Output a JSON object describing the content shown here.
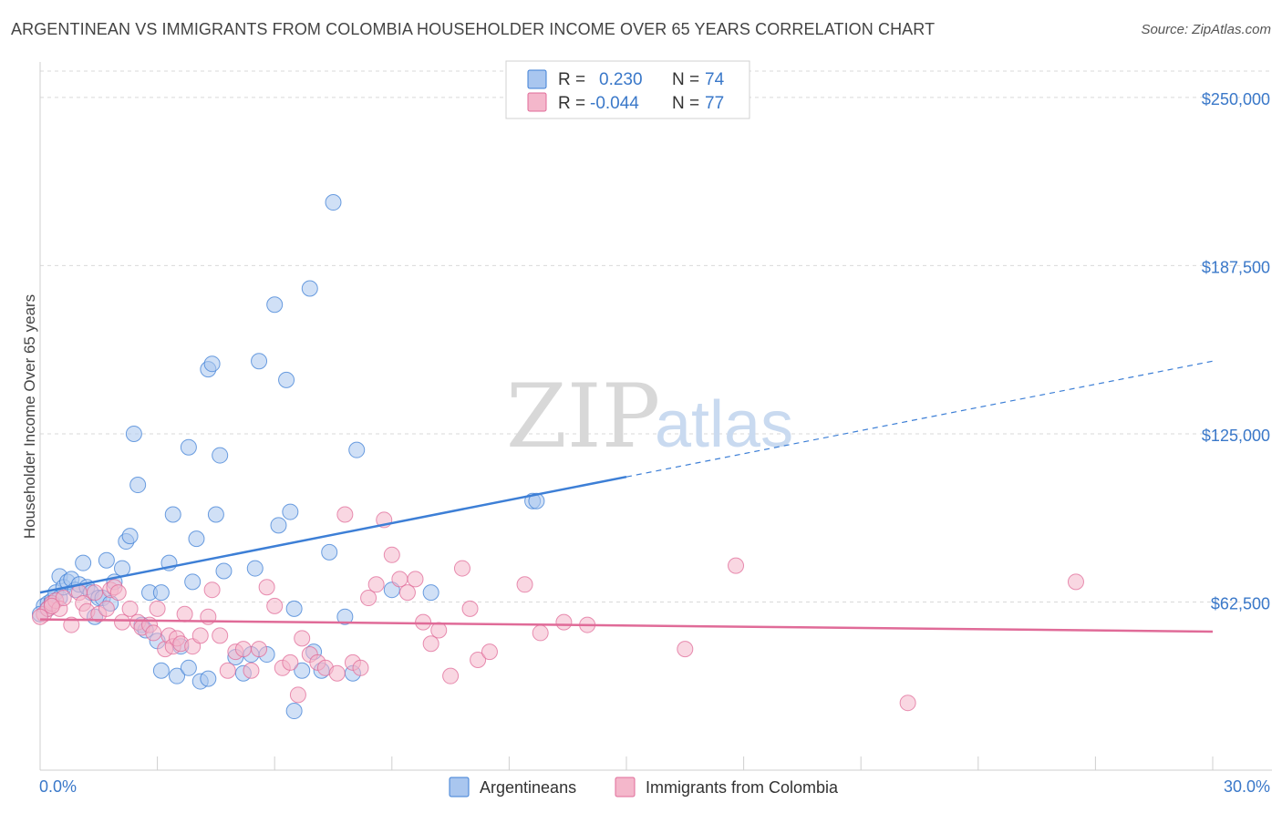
{
  "title": "ARGENTINEAN VS IMMIGRANTS FROM COLOMBIA HOUSEHOLDER INCOME OVER 65 YEARS CORRELATION CHART",
  "source": "Source: ZipAtlas.com",
  "watermark": {
    "zip": "ZIP",
    "atlas": "atlas"
  },
  "legend_box": {
    "rows": [
      {
        "r_label": "R =",
        "r_value": "0.230",
        "n_label": "N =",
        "n_value": "74"
      },
      {
        "r_label": "R =",
        "r_value": "-0.044",
        "n_label": "N =",
        "n_value": "77"
      }
    ]
  },
  "colors": {
    "blue": "#3d7fd6",
    "blue_fill": "#a9c6ef",
    "pink": "#e06b98",
    "pink_fill": "#f4b7cb",
    "axis_text": "#3a78c9",
    "grid": "#d9d9d9"
  },
  "chart_data": {
    "type": "scatter",
    "title": "ARGENTINEAN VS IMMIGRANTS FROM COLOMBIA HOUSEHOLDER INCOME OVER 65 YEARS CORRELATION CHART",
    "xlabel": "",
    "ylabel": "Householder Income Over 65 years",
    "xlim": [
      0,
      30
    ],
    "ylim": [
      0,
      262500
    ],
    "x_tick_labels": {
      "left": "0.0%",
      "right": "30.0%"
    },
    "y_ticks": [
      {
        "value": 62500,
        "label": "$62,500"
      },
      {
        "value": 125000,
        "label": "$125,000"
      },
      {
        "value": 187500,
        "label": "$187,500"
      },
      {
        "value": 250000,
        "label": "$250,000"
      }
    ],
    "grid": true,
    "legend_position": "bottom",
    "series": [
      {
        "name": "Argentineans",
        "color": "#3d7fd6",
        "fill": "#a9c6ef",
        "trend": {
          "x0": 0.0,
          "y0": 66000,
          "x1": 15.0,
          "y1": 109000,
          "x_dash_end": 30.0,
          "y_dash_end": 152000
        },
        "points": [
          [
            0.1,
            61000
          ],
          [
            0.2,
            62000
          ],
          [
            0.3,
            63000
          ],
          [
            0.4,
            66000
          ],
          [
            0.5,
            64000
          ],
          [
            0.5,
            72000
          ],
          [
            0.6,
            68000
          ],
          [
            0.7,
            70000
          ],
          [
            0.8,
            71000
          ],
          [
            0.9,
            67000
          ],
          [
            1.0,
            69000
          ],
          [
            1.1,
            77000
          ],
          [
            1.2,
            68000
          ],
          [
            1.3,
            66000
          ],
          [
            1.4,
            57000
          ],
          [
            1.5,
            64000
          ],
          [
            1.6,
            64000
          ],
          [
            1.7,
            78000
          ],
          [
            1.8,
            62000
          ],
          [
            1.9,
            70000
          ],
          [
            2.1,
            75000
          ],
          [
            2.2,
            85000
          ],
          [
            2.3,
            87000
          ],
          [
            2.4,
            125000
          ],
          [
            2.5,
            106000
          ],
          [
            2.6,
            54000
          ],
          [
            2.7,
            52000
          ],
          [
            2.8,
            66000
          ],
          [
            3.0,
            48000
          ],
          [
            3.1,
            66000
          ],
          [
            3.1,
            37000
          ],
          [
            3.3,
            77000
          ],
          [
            3.4,
            95000
          ],
          [
            3.5,
            35000
          ],
          [
            3.6,
            46000
          ],
          [
            3.8,
            38000
          ],
          [
            3.8,
            120000
          ],
          [
            3.9,
            70000
          ],
          [
            4.0,
            86000
          ],
          [
            4.1,
            33000
          ],
          [
            4.3,
            34000
          ],
          [
            4.3,
            149000
          ],
          [
            4.4,
            151000
          ],
          [
            4.5,
            95000
          ],
          [
            4.6,
            117000
          ],
          [
            4.7,
            74000
          ],
          [
            5.0,
            42000
          ],
          [
            5.2,
            36000
          ],
          [
            5.4,
            43000
          ],
          [
            5.5,
            75000
          ],
          [
            5.6,
            152000
          ],
          [
            5.8,
            43000
          ],
          [
            6.0,
            173000
          ],
          [
            6.1,
            91000
          ],
          [
            6.3,
            145000
          ],
          [
            6.4,
            96000
          ],
          [
            6.5,
            60000
          ],
          [
            6.5,
            22000
          ],
          [
            6.7,
            37000
          ],
          [
            6.9,
            179000
          ],
          [
            7.0,
            44000
          ],
          [
            7.2,
            37000
          ],
          [
            7.4,
            81000
          ],
          [
            7.5,
            211000
          ],
          [
            7.8,
            57000
          ],
          [
            8.0,
            36000
          ],
          [
            8.1,
            119000
          ],
          [
            9.0,
            67000
          ],
          [
            10.0,
            66000
          ],
          [
            12.6,
            100000
          ],
          [
            12.7,
            100000
          ],
          [
            0.0,
            58000
          ],
          [
            0.2,
            60000
          ],
          [
            0.3,
            62000
          ]
        ]
      },
      {
        "name": "Immigrants from Colombia",
        "color": "#e06b98",
        "fill": "#f4b7cb",
        "trend": {
          "x0": 0.0,
          "y0": 56000,
          "x1": 30.0,
          "y1": 51500
        },
        "points": [
          [
            0.1,
            58000
          ],
          [
            0.2,
            60000
          ],
          [
            0.3,
            62000
          ],
          [
            0.4,
            63000
          ],
          [
            0.5,
            60000
          ],
          [
            0.6,
            64000
          ],
          [
            0.8,
            54000
          ],
          [
            1.0,
            66000
          ],
          [
            1.1,
            62000
          ],
          [
            1.2,
            59000
          ],
          [
            1.4,
            66000
          ],
          [
            1.5,
            58000
          ],
          [
            1.7,
            60000
          ],
          [
            1.8,
            67000
          ],
          [
            1.9,
            68000
          ],
          [
            2.0,
            66000
          ],
          [
            2.1,
            55000
          ],
          [
            2.3,
            60000
          ],
          [
            2.5,
            55000
          ],
          [
            2.6,
            53000
          ],
          [
            2.8,
            54000
          ],
          [
            2.9,
            51000
          ],
          [
            3.0,
            60000
          ],
          [
            3.2,
            45000
          ],
          [
            3.3,
            50000
          ],
          [
            3.4,
            46000
          ],
          [
            3.5,
            49000
          ],
          [
            3.6,
            47000
          ],
          [
            3.7,
            58000
          ],
          [
            3.9,
            46000
          ],
          [
            4.1,
            50000
          ],
          [
            4.3,
            57000
          ],
          [
            4.4,
            67000
          ],
          [
            4.6,
            50000
          ],
          [
            4.8,
            37000
          ],
          [
            5.0,
            44000
          ],
          [
            5.2,
            45000
          ],
          [
            5.4,
            37000
          ],
          [
            5.6,
            45000
          ],
          [
            5.8,
            68000
          ],
          [
            6.0,
            61000
          ],
          [
            6.2,
            38000
          ],
          [
            6.4,
            40000
          ],
          [
            6.6,
            28000
          ],
          [
            6.7,
            49000
          ],
          [
            6.9,
            43000
          ],
          [
            7.1,
            40000
          ],
          [
            7.3,
            38000
          ],
          [
            7.6,
            36000
          ],
          [
            7.8,
            95000
          ],
          [
            8.0,
            40000
          ],
          [
            8.2,
            38000
          ],
          [
            8.4,
            64000
          ],
          [
            8.6,
            69000
          ],
          [
            8.8,
            93000
          ],
          [
            9.0,
            80000
          ],
          [
            9.2,
            71000
          ],
          [
            9.4,
            66000
          ],
          [
            9.6,
            71000
          ],
          [
            9.8,
            55000
          ],
          [
            10.0,
            47000
          ],
          [
            10.2,
            52000
          ],
          [
            10.5,
            35000
          ],
          [
            10.8,
            75000
          ],
          [
            11.0,
            60000
          ],
          [
            11.2,
            41000
          ],
          [
            11.5,
            44000
          ],
          [
            12.4,
            69000
          ],
          [
            12.8,
            51000
          ],
          [
            13.4,
            55000
          ],
          [
            14.0,
            54000
          ],
          [
            16.5,
            45000
          ],
          [
            17.8,
            76000
          ],
          [
            22.2,
            25000
          ],
          [
            26.5,
            70000
          ],
          [
            0.0,
            57000
          ],
          [
            0.3,
            61000
          ]
        ]
      }
    ]
  },
  "bottom_legend": [
    {
      "label": "Argentineans",
      "color_key": "blue"
    },
    {
      "label": "Immigrants from Colombia",
      "color_key": "pink"
    }
  ]
}
